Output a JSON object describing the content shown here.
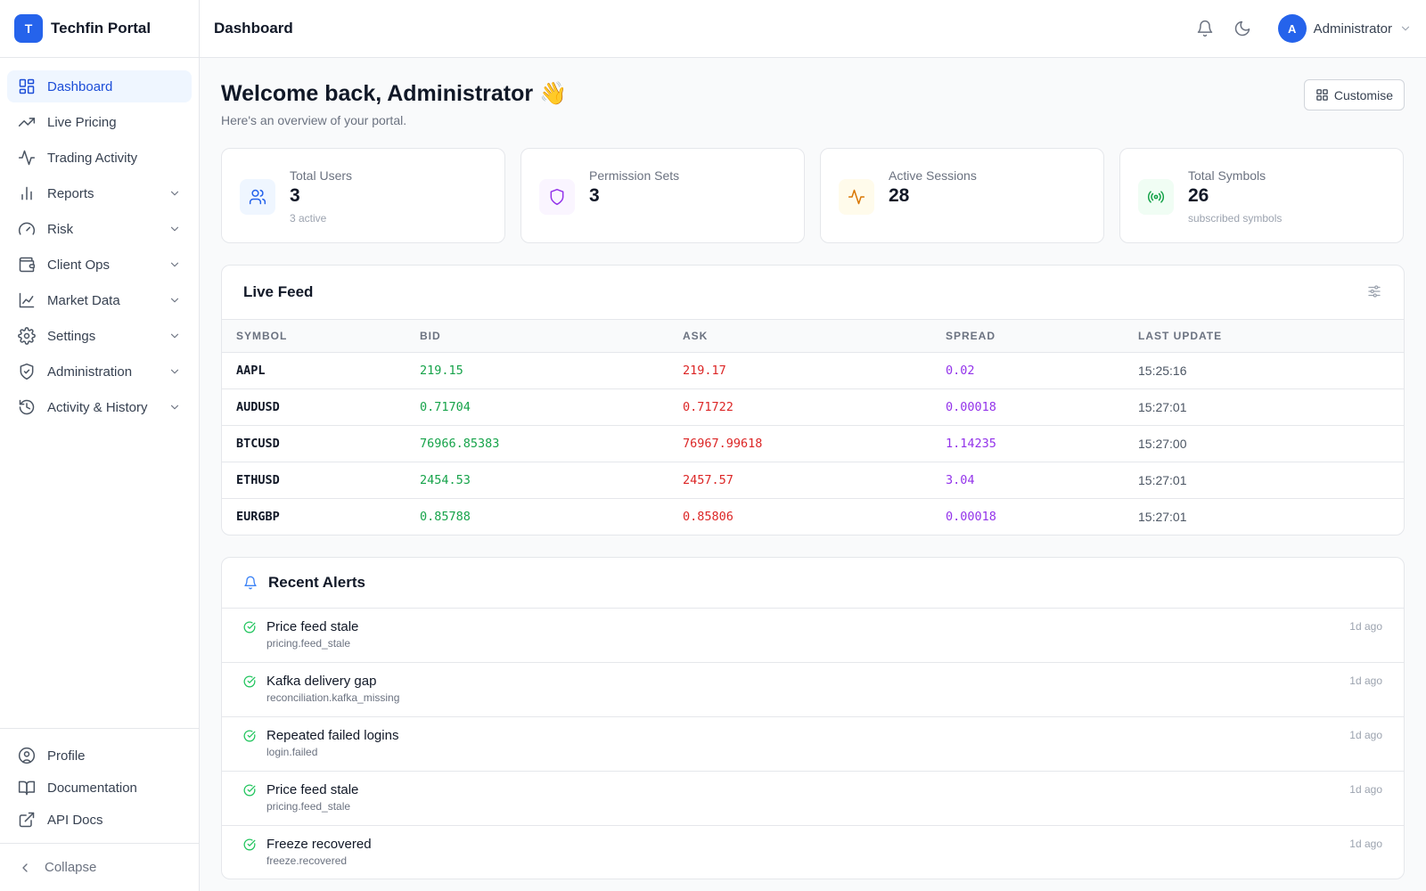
{
  "brand": {
    "logo_letter": "T",
    "name": "Techfin Portal"
  },
  "nav": {
    "items": [
      {
        "label": "Dashboard",
        "icon": "grid-icon",
        "active": true,
        "expandable": false
      },
      {
        "label": "Live Pricing",
        "icon": "trending-up-icon",
        "expandable": false
      },
      {
        "label": "Trading Activity",
        "icon": "activity-icon",
        "expandable": false
      },
      {
        "label": "Reports",
        "icon": "bar-chart-icon",
        "expandable": true
      },
      {
        "label": "Risk",
        "icon": "gauge-icon",
        "expandable": true
      },
      {
        "label": "Client Ops",
        "icon": "wallet-icon",
        "expandable": true
      },
      {
        "label": "Market Data",
        "icon": "line-chart-icon",
        "expandable": true
      },
      {
        "label": "Settings",
        "icon": "gear-icon",
        "expandable": true
      },
      {
        "label": "Administration",
        "icon": "shield-check-icon",
        "expandable": true
      },
      {
        "label": "Activity & History",
        "icon": "history-icon",
        "expandable": true
      }
    ]
  },
  "sidebar_footer": {
    "links": [
      {
        "label": "Profile",
        "icon": "user-circle-icon"
      },
      {
        "label": "Documentation",
        "icon": "book-icon"
      },
      {
        "label": "API Docs",
        "icon": "external-link-icon"
      }
    ],
    "collapse_label": "Collapse"
  },
  "topbar": {
    "title": "Dashboard",
    "user": {
      "initial": "A",
      "name": "Administrator"
    }
  },
  "welcome": {
    "title": "Welcome back, Administrator 👋",
    "subtitle": "Here's an overview of your portal.",
    "customise_label": "Customise"
  },
  "stats": [
    {
      "label": "Total Users",
      "value": "3",
      "sub": "3 active",
      "icon": "users-icon",
      "color": "#2563eb",
      "bg": "#eff6ff"
    },
    {
      "label": "Permission Sets",
      "value": "3",
      "sub": "",
      "icon": "shield-icon",
      "color": "#9333ea",
      "bg": "#faf5ff"
    },
    {
      "label": "Active Sessions",
      "value": "28",
      "sub": "",
      "icon": "activity-icon",
      "color": "#d97706",
      "bg": "#fffbeb"
    },
    {
      "label": "Total Symbols",
      "value": "26",
      "sub": "subscribed symbols",
      "icon": "broadcast-icon",
      "color": "#16a34a",
      "bg": "#f0fdf4"
    }
  ],
  "live_feed": {
    "title": "Live Feed",
    "columns": [
      "SYMBOL",
      "BID",
      "ASK",
      "SPREAD",
      "LAST UPDATE"
    ],
    "rows": [
      {
        "symbol": "AAPL",
        "bid": "219.15",
        "ask": "219.17",
        "spread": "0.02",
        "updated": "15:25:16"
      },
      {
        "symbol": "AUDUSD",
        "bid": "0.71704",
        "ask": "0.71722",
        "spread": "0.00018",
        "updated": "15:27:01"
      },
      {
        "symbol": "BTCUSD",
        "bid": "76966.85383",
        "ask": "76967.99618",
        "spread": "1.14235",
        "updated": "15:27:00"
      },
      {
        "symbol": "ETHUSD",
        "bid": "2454.53",
        "ask": "2457.57",
        "spread": "3.04",
        "updated": "15:27:01"
      },
      {
        "symbol": "EURGBP",
        "bid": "0.85788",
        "ask": "0.85806",
        "spread": "0.00018",
        "updated": "15:27:01"
      }
    ]
  },
  "alerts": {
    "title": "Recent Alerts",
    "items": [
      {
        "title": "Price feed stale",
        "code": "pricing.feed_stale",
        "time": "1d ago"
      },
      {
        "title": "Kafka delivery gap",
        "code": "reconciliation.kafka_missing",
        "time": "1d ago"
      },
      {
        "title": "Repeated failed logins",
        "code": "login.failed",
        "time": "1d ago"
      },
      {
        "title": "Price feed stale",
        "code": "pricing.feed_stale",
        "time": "1d ago"
      },
      {
        "title": "Freeze recovered",
        "code": "freeze.recovered",
        "time": "1d ago"
      }
    ]
  },
  "colors": {
    "accent": "#2563eb",
    "bid": "#16a34a",
    "ask": "#dc2626",
    "spread": "#9333ea",
    "resolved": "#22c55e"
  }
}
